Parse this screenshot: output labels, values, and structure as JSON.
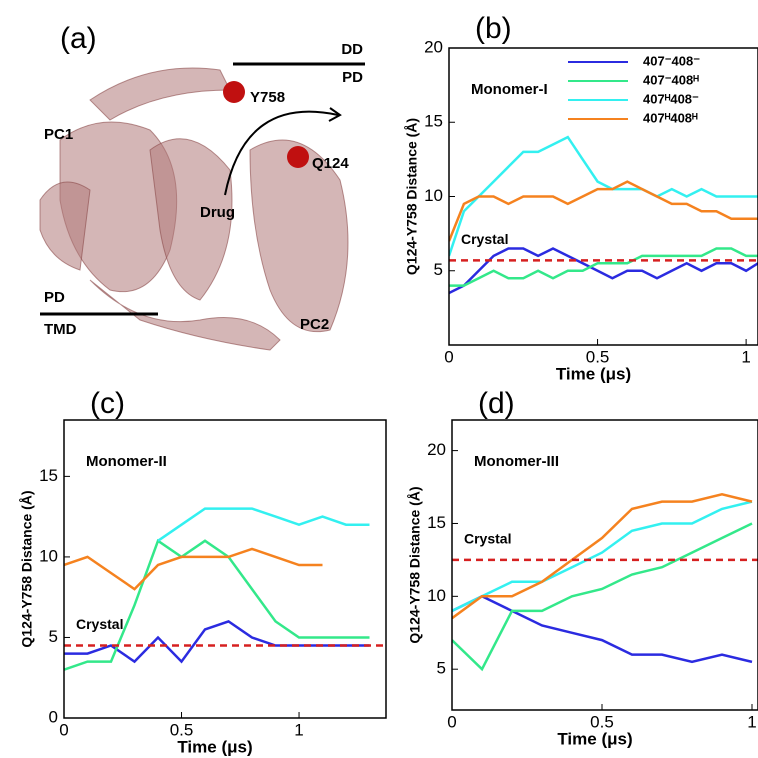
{
  "panel_a": {
    "label": "(a)",
    "labels": [
      "DD",
      "PD",
      "Y758",
      "PC1",
      "Q124",
      "Drug",
      "PD",
      "TMD",
      "PC2"
    ]
  },
  "chart_data": [
    {
      "type": "line",
      "panel": "(b)",
      "annotation": "Monomer-I",
      "xlabel": "Time (μs)",
      "ylabel": "Q124-Y758 Distance (Å)",
      "xlim": [
        0,
        1.04
      ],
      "xticks": [
        0,
        0.5,
        1
      ],
      "ylim": [
        0,
        20
      ],
      "yticks": [
        5,
        10,
        15,
        20
      ],
      "legend": "upper right",
      "hline": {
        "value": 5.7,
        "label": "Crystal",
        "color": "#d62020"
      },
      "x": [
        0,
        0.05,
        0.1,
        0.15,
        0.2,
        0.25,
        0.3,
        0.35,
        0.4,
        0.45,
        0.5,
        0.55,
        0.6,
        0.65,
        0.7,
        0.75,
        0.8,
        0.85,
        0.9,
        0.95,
        1,
        1.04
      ],
      "series": [
        {
          "name": "407⁻408⁻",
          "color": "#2b2be0",
          "values": [
            3.5,
            4,
            5,
            6,
            6.5,
            6.5,
            6,
            6.5,
            6,
            5.5,
            5,
            4.5,
            5,
            5,
            4.5,
            5,
            5.5,
            5,
            5.5,
            5.5,
            5,
            5.5
          ]
        },
        {
          "name": "407⁻408ᴴ",
          "color": "#33e88a",
          "values": [
            4,
            4,
            4.5,
            5,
            4.5,
            4.5,
            5,
            4.5,
            5,
            5,
            5.5,
            5.5,
            5.5,
            6,
            6,
            6,
            6,
            6,
            6.5,
            6.5,
            6,
            6
          ]
        },
        {
          "name": "407ᴴ408⁻",
          "color": "#33f0f0",
          "values": [
            6,
            9,
            10,
            11,
            12,
            13,
            13,
            13.5,
            14,
            12.5,
            11,
            10.5,
            10.5,
            10.5,
            10,
            10.5,
            10,
            10.5,
            10,
            10,
            10,
            10
          ]
        },
        {
          "name": "407ᴴ408ᴴ",
          "color": "#f5821f",
          "values": [
            7,
            9.5,
            10,
            10,
            9.5,
            10,
            10,
            10,
            9.5,
            10,
            10.5,
            10.5,
            11,
            10.5,
            10,
            9.5,
            9.5,
            9,
            9,
            8.5,
            8.5,
            8.5
          ]
        }
      ]
    },
    {
      "type": "line",
      "panel": "(c)",
      "annotation": "Monomer-II",
      "xlabel": "Time (μs)",
      "ylabel": "Q124-Y758 Distance (Å)",
      "xlim": [
        0,
        1.37
      ],
      "xticks": [
        0,
        0.5,
        1
      ],
      "ylim": [
        0,
        18.5
      ],
      "yticks": [
        0,
        5,
        10,
        15
      ],
      "hline": {
        "value": 4.5,
        "label": "Crystal",
        "color": "#d62020"
      },
      "x": [
        0,
        0.1,
        0.2,
        0.3,
        0.4,
        0.5,
        0.6,
        0.7,
        0.8,
        0.9,
        1,
        1.1,
        1.2,
        1.3
      ],
      "series": [
        {
          "name": "407⁻408⁻",
          "color": "#2b2be0",
          "values": [
            4,
            4,
            4.5,
            3.5,
            5,
            3.5,
            5.5,
            6,
            5,
            4.5,
            4.5,
            4.5,
            4.5,
            4.5
          ]
        },
        {
          "name": "407⁻408ᴴ",
          "color": "#33e88a",
          "values": [
            3,
            3.5,
            3.5,
            7,
            11,
            10,
            11,
            10,
            8,
            6,
            5,
            5,
            5,
            5
          ]
        },
        {
          "name": "407ᴴ408⁻",
          "color": "#33f0f0",
          "values": [
            null,
            null,
            null,
            null,
            11,
            12,
            13,
            13,
            13,
            12.5,
            12,
            12.5,
            12,
            12
          ]
        },
        {
          "name": "407ᴴ408ᴴ",
          "color": "#f5821f",
          "values": [
            9.5,
            10,
            9,
            8,
            9.5,
            10,
            10,
            10,
            10.5,
            10,
            9.5,
            9.5,
            null,
            null
          ]
        }
      ]
    },
    {
      "type": "line",
      "panel": "(d)",
      "annotation": "Monomer-III",
      "xlabel": "Time (μs)",
      "ylabel": "Q124-Y758 Distance (Å)",
      "xlim": [
        0,
        1.02
      ],
      "xticks": [
        0,
        0.5,
        1
      ],
      "ylim": [
        2.2,
        22.1
      ],
      "yticks": [
        5,
        10,
        15,
        20
      ],
      "hline": {
        "value": 12.5,
        "label": "Crystal",
        "color": "#d62020"
      },
      "x": [
        0,
        0.1,
        0.2,
        0.3,
        0.4,
        0.5,
        0.6,
        0.7,
        0.8,
        0.9,
        1
      ],
      "series": [
        {
          "name": "407⁻408⁻",
          "color": "#2b2be0",
          "values": [
            9,
            10,
            9,
            8,
            7.5,
            7,
            6,
            6,
            5.5,
            6,
            5.5
          ]
        },
        {
          "name": "407⁻408ᴴ",
          "color": "#33e88a",
          "values": [
            7,
            5,
            9,
            9,
            10,
            10.5,
            11.5,
            12,
            13,
            14,
            15
          ]
        },
        {
          "name": "407ᴴ408⁻",
          "color": "#33f0f0",
          "values": [
            9,
            10,
            11,
            11,
            12,
            13,
            14.5,
            15,
            15,
            16,
            16.5
          ]
        },
        {
          "name": "407ᴴ408ᴴ",
          "color": "#f5821f",
          "values": [
            8.5,
            10,
            10,
            11,
            12.5,
            14,
            16,
            16.5,
            16.5,
            17,
            16.5
          ]
        }
      ]
    }
  ]
}
